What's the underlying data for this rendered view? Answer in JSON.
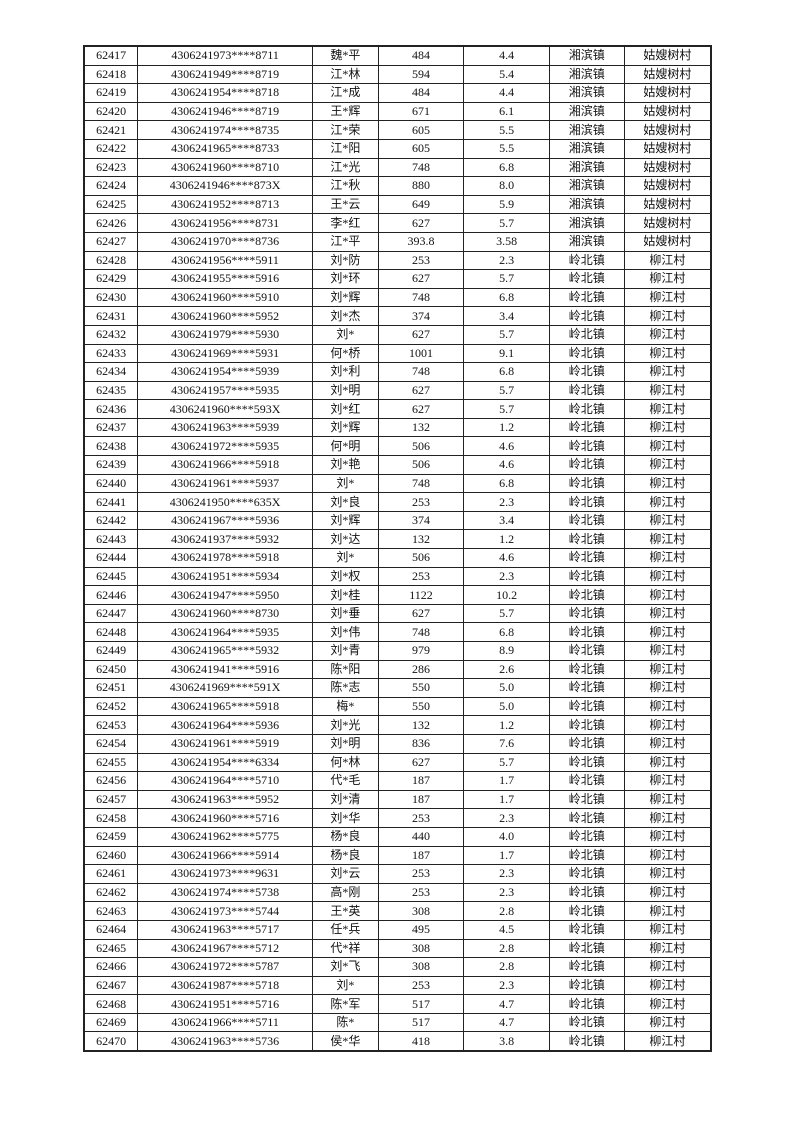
{
  "rows": [
    [
      "62417",
      "4306241973****8711",
      "魏*平",
      "484",
      "4.4",
      "湘滨镇",
      "姑嫂树村"
    ],
    [
      "62418",
      "4306241949****8719",
      "江*林",
      "594",
      "5.4",
      "湘滨镇",
      "姑嫂树村"
    ],
    [
      "62419",
      "4306241954****8718",
      "江*成",
      "484",
      "4.4",
      "湘滨镇",
      "姑嫂树村"
    ],
    [
      "62420",
      "4306241946****8719",
      "王*辉",
      "671",
      "6.1",
      "湘滨镇",
      "姑嫂树村"
    ],
    [
      "62421",
      "4306241974****8735",
      "江*荣",
      "605",
      "5.5",
      "湘滨镇",
      "姑嫂树村"
    ],
    [
      "62422",
      "4306241965****8733",
      "江*阳",
      "605",
      "5.5",
      "湘滨镇",
      "姑嫂树村"
    ],
    [
      "62423",
      "4306241960****8710",
      "江*光",
      "748",
      "6.8",
      "湘滨镇",
      "姑嫂树村"
    ],
    [
      "62424",
      "4306241946****873X",
      "江*秋",
      "880",
      "8.0",
      "湘滨镇",
      "姑嫂树村"
    ],
    [
      "62425",
      "4306241952****8713",
      "王*云",
      "649",
      "5.9",
      "湘滨镇",
      "姑嫂树村"
    ],
    [
      "62426",
      "4306241956****8731",
      "李*红",
      "627",
      "5.7",
      "湘滨镇",
      "姑嫂树村"
    ],
    [
      "62427",
      "4306241970****8736",
      "江*平",
      "393.8",
      "3.58",
      "湘滨镇",
      "姑嫂树村"
    ],
    [
      "62428",
      "4306241956****5911",
      "刘*防",
      "253",
      "2.3",
      "岭北镇",
      "柳江村"
    ],
    [
      "62429",
      "4306241955****5916",
      "刘*环",
      "627",
      "5.7",
      "岭北镇",
      "柳江村"
    ],
    [
      "62430",
      "4306241960****5910",
      "刘*辉",
      "748",
      "6.8",
      "岭北镇",
      "柳江村"
    ],
    [
      "62431",
      "4306241960****5952",
      "刘*杰",
      "374",
      "3.4",
      "岭北镇",
      "柳江村"
    ],
    [
      "62432",
      "4306241979****5930",
      "刘*",
      "627",
      "5.7",
      "岭北镇",
      "柳江村"
    ],
    [
      "62433",
      "4306241969****5931",
      "何*桥",
      "1001",
      "9.1",
      "岭北镇",
      "柳江村"
    ],
    [
      "62434",
      "4306241954****5939",
      "刘*利",
      "748",
      "6.8",
      "岭北镇",
      "柳江村"
    ],
    [
      "62435",
      "4306241957****5935",
      "刘*明",
      "627",
      "5.7",
      "岭北镇",
      "柳江村"
    ],
    [
      "62436",
      "4306241960****593X",
      "刘*红",
      "627",
      "5.7",
      "岭北镇",
      "柳江村"
    ],
    [
      "62437",
      "4306241963****5939",
      "刘*辉",
      "132",
      "1.2",
      "岭北镇",
      "柳江村"
    ],
    [
      "62438",
      "4306241972****5935",
      "何*明",
      "506",
      "4.6",
      "岭北镇",
      "柳江村"
    ],
    [
      "62439",
      "4306241966****5918",
      "刘*艳",
      "506",
      "4.6",
      "岭北镇",
      "柳江村"
    ],
    [
      "62440",
      "4306241961****5937",
      "刘*",
      "748",
      "6.8",
      "岭北镇",
      "柳江村"
    ],
    [
      "62441",
      "4306241950****635X",
      "刘*良",
      "253",
      "2.3",
      "岭北镇",
      "柳江村"
    ],
    [
      "62442",
      "4306241967****5936",
      "刘*辉",
      "374",
      "3.4",
      "岭北镇",
      "柳江村"
    ],
    [
      "62443",
      "4306241937****5932",
      "刘*达",
      "132",
      "1.2",
      "岭北镇",
      "柳江村"
    ],
    [
      "62444",
      "4306241978****5918",
      "刘*",
      "506",
      "4.6",
      "岭北镇",
      "柳江村"
    ],
    [
      "62445",
      "4306241951****5934",
      "刘*权",
      "253",
      "2.3",
      "岭北镇",
      "柳江村"
    ],
    [
      "62446",
      "4306241947****5950",
      "刘*桂",
      "1122",
      "10.2",
      "岭北镇",
      "柳江村"
    ],
    [
      "62447",
      "4306241960****8730",
      "刘*垂",
      "627",
      "5.7",
      "岭北镇",
      "柳江村"
    ],
    [
      "62448",
      "4306241964****5935",
      "刘*伟",
      "748",
      "6.8",
      "岭北镇",
      "柳江村"
    ],
    [
      "62449",
      "4306241965****5932",
      "刘*青",
      "979",
      "8.9",
      "岭北镇",
      "柳江村"
    ],
    [
      "62450",
      "4306241941****5916",
      "陈*阳",
      "286",
      "2.6",
      "岭北镇",
      "柳江村"
    ],
    [
      "62451",
      "4306241969****591X",
      "陈*志",
      "550",
      "5.0",
      "岭北镇",
      "柳江村"
    ],
    [
      "62452",
      "4306241965****5918",
      "梅*",
      "550",
      "5.0",
      "岭北镇",
      "柳江村"
    ],
    [
      "62453",
      "4306241964****5936",
      "刘*光",
      "132",
      "1.2",
      "岭北镇",
      "柳江村"
    ],
    [
      "62454",
      "4306241961****5919",
      "刘*明",
      "836",
      "7.6",
      "岭北镇",
      "柳江村"
    ],
    [
      "62455",
      "4306241954****6334",
      "何*林",
      "627",
      "5.7",
      "岭北镇",
      "柳江村"
    ],
    [
      "62456",
      "4306241964****5710",
      "代*毛",
      "187",
      "1.7",
      "岭北镇",
      "柳江村"
    ],
    [
      "62457",
      "4306241963****5952",
      "刘*清",
      "187",
      "1.7",
      "岭北镇",
      "柳江村"
    ],
    [
      "62458",
      "4306241960****5716",
      "刘*华",
      "253",
      "2.3",
      "岭北镇",
      "柳江村"
    ],
    [
      "62459",
      "4306241962****5775",
      "杨*良",
      "440",
      "4.0",
      "岭北镇",
      "柳江村"
    ],
    [
      "62460",
      "4306241966****5914",
      "杨*良",
      "187",
      "1.7",
      "岭北镇",
      "柳江村"
    ],
    [
      "62461",
      "4306241973****9631",
      "刘*云",
      "253",
      "2.3",
      "岭北镇",
      "柳江村"
    ],
    [
      "62462",
      "4306241974****5738",
      "高*刚",
      "253",
      "2.3",
      "岭北镇",
      "柳江村"
    ],
    [
      "62463",
      "4306241973****5744",
      "王*英",
      "308",
      "2.8",
      "岭北镇",
      "柳江村"
    ],
    [
      "62464",
      "4306241963****5717",
      "任*兵",
      "495",
      "4.5",
      "岭北镇",
      "柳江村"
    ],
    [
      "62465",
      "4306241967****5712",
      "代*祥",
      "308",
      "2.8",
      "岭北镇",
      "柳江村"
    ],
    [
      "62466",
      "4306241972****5787",
      "刘*飞",
      "308",
      "2.8",
      "岭北镇",
      "柳江村"
    ],
    [
      "62467",
      "4306241987****5718",
      "刘*",
      "253",
      "2.3",
      "岭北镇",
      "柳江村"
    ],
    [
      "62468",
      "4306241951****5716",
      "陈*军",
      "517",
      "4.7",
      "岭北镇",
      "柳江村"
    ],
    [
      "62469",
      "4306241966****5711",
      "陈*",
      "517",
      "4.7",
      "岭北镇",
      "柳江村"
    ],
    [
      "62470",
      "4306241963****5736",
      "侯*华",
      "418",
      "3.8",
      "岭北镇",
      "柳江村"
    ]
  ]
}
